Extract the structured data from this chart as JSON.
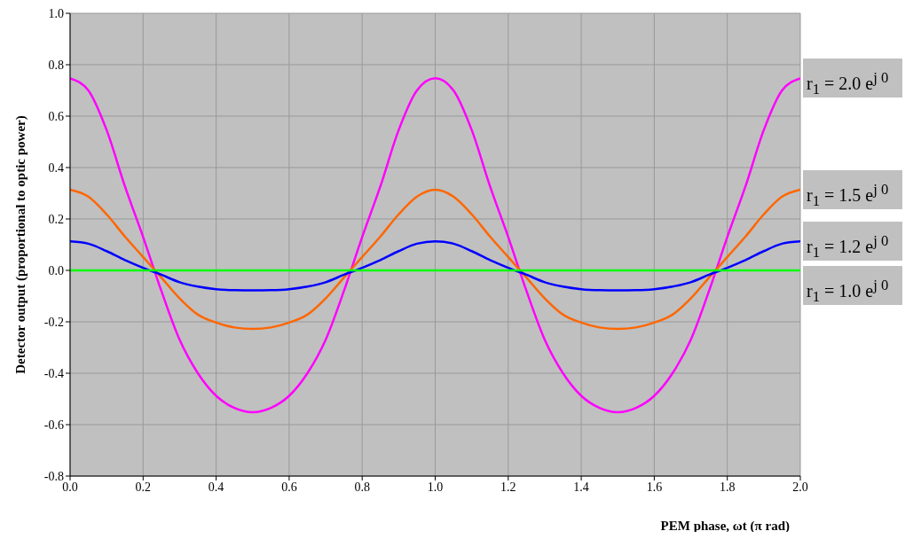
{
  "chart_data": {
    "type": "line",
    "xlabel": "PEM phase, ωt (π rad)",
    "ylabel": "Detector output (proportional to optic power)",
    "x": [
      0,
      0.05,
      0.1,
      0.15,
      0.2,
      0.25,
      0.3,
      0.35,
      0.4,
      0.45,
      0.5,
      0.55,
      0.6,
      0.65,
      0.7,
      0.75,
      0.8,
      0.85,
      0.9,
      0.95,
      1.0,
      1.05,
      1.1,
      1.15,
      1.2,
      1.25,
      1.3,
      1.35,
      1.4,
      1.45,
      1.5,
      1.55,
      1.6,
      1.65,
      1.7,
      1.75,
      1.8,
      1.85,
      1.9,
      1.95,
      2.0
    ],
    "series": [
      {
        "name": "r$_{1}$ = 2.0 e$^{j 0}$",
        "color": "#ff00ff",
        "values": [
          0.747,
          0.7,
          0.546,
          0.328,
          0.13,
          -0.08,
          -0.27,
          -0.4,
          -0.488,
          -0.535,
          -0.552,
          -0.535,
          -0.488,
          -0.4,
          -0.27,
          -0.08,
          0.13,
          0.328,
          0.546,
          0.7,
          0.747,
          0.7,
          0.546,
          0.328,
          0.13,
          -0.08,
          -0.27,
          -0.4,
          -0.488,
          -0.535,
          -0.552,
          -0.535,
          -0.488,
          -0.4,
          -0.27,
          -0.08,
          0.13,
          0.328,
          0.546,
          0.7,
          0.747
        ]
      },
      {
        "name": "r$_{1}$ = 1.5 e$^{j 0}$",
        "color": "#ff6600",
        "values": [
          0.314,
          0.287,
          0.218,
          0.132,
          0.052,
          -0.028,
          -0.109,
          -0.172,
          -0.203,
          -0.222,
          -0.228,
          -0.222,
          -0.203,
          -0.172,
          -0.109,
          -0.028,
          0.052,
          0.132,
          0.218,
          0.287,
          0.314,
          0.287,
          0.218,
          0.132,
          0.052,
          -0.028,
          -0.109,
          -0.172,
          -0.203,
          -0.222,
          -0.228,
          -0.222,
          -0.203,
          -0.172,
          -0.109,
          -0.028,
          0.052,
          0.132,
          0.218,
          0.287,
          0.314
        ]
      },
      {
        "name": "r$_{1}$ = 1.2 e$^{j 0}$",
        "color": "#0000ff",
        "values": [
          0.113,
          0.104,
          0.075,
          0.04,
          0.01,
          -0.017,
          -0.046,
          -0.063,
          -0.073,
          -0.077,
          -0.078,
          -0.077,
          -0.073,
          -0.063,
          -0.046,
          -0.017,
          0.01,
          0.04,
          0.075,
          0.104,
          0.113,
          0.104,
          0.075,
          0.04,
          0.01,
          -0.017,
          -0.046,
          -0.063,
          -0.073,
          -0.077,
          -0.078,
          -0.077,
          -0.073,
          -0.063,
          -0.046,
          -0.017,
          0.01,
          0.04,
          0.075,
          0.104,
          0.113
        ]
      },
      {
        "name": "r$_{1}$ = 1.0 e$^{j 0}$",
        "color": "#00ff00",
        "values": [
          0,
          0,
          0,
          0,
          0,
          0,
          0,
          0,
          0,
          0,
          0,
          0,
          0,
          0,
          0,
          0,
          0,
          0,
          0,
          0,
          0,
          0,
          0,
          0,
          0,
          0,
          0,
          0,
          0,
          0,
          0,
          0,
          0,
          0,
          0,
          0,
          0,
          0,
          0,
          0,
          0
        ]
      }
    ],
    "xlim": [
      0,
      2
    ],
    "xticks": [
      {
        "value": 0,
        "label": "0.0"
      },
      {
        "value": 0.2,
        "label": "0.2"
      },
      {
        "value": 0.4,
        "label": "0.4"
      },
      {
        "value": 0.6,
        "label": "0.6"
      },
      {
        "value": 0.8,
        "label": "0.8"
      },
      {
        "value": 1,
        "label": "1.0"
      },
      {
        "value": 1.2,
        "label": "1.2"
      },
      {
        "value": 1.4,
        "label": "1.4"
      },
      {
        "value": 1.6,
        "label": "1.6"
      },
      {
        "value": 1.8,
        "label": "1.8"
      },
      {
        "value": 2,
        "label": "2.0"
      }
    ],
    "ylim": [
      -0.8,
      1
    ],
    "yticks": [
      {
        "value": -0.8,
        "label": "-0.8"
      },
      {
        "value": -0.6,
        "label": "-0.6"
      },
      {
        "value": -0.4,
        "label": "-0.4"
      },
      {
        "value": -0.2,
        "label": "-0.2"
      },
      {
        "value": 0,
        "label": "0.0"
      },
      {
        "value": 0.2,
        "label": "0.2"
      },
      {
        "value": 0.4,
        "label": "0.4"
      },
      {
        "value": 0.6,
        "label": "0.6"
      },
      {
        "value": 0.8,
        "label": "0.8"
      },
      {
        "value": 1,
        "label": "1.0"
      }
    ],
    "grid": true,
    "legend": false,
    "marker": "none",
    "line_style": "solid"
  }
}
